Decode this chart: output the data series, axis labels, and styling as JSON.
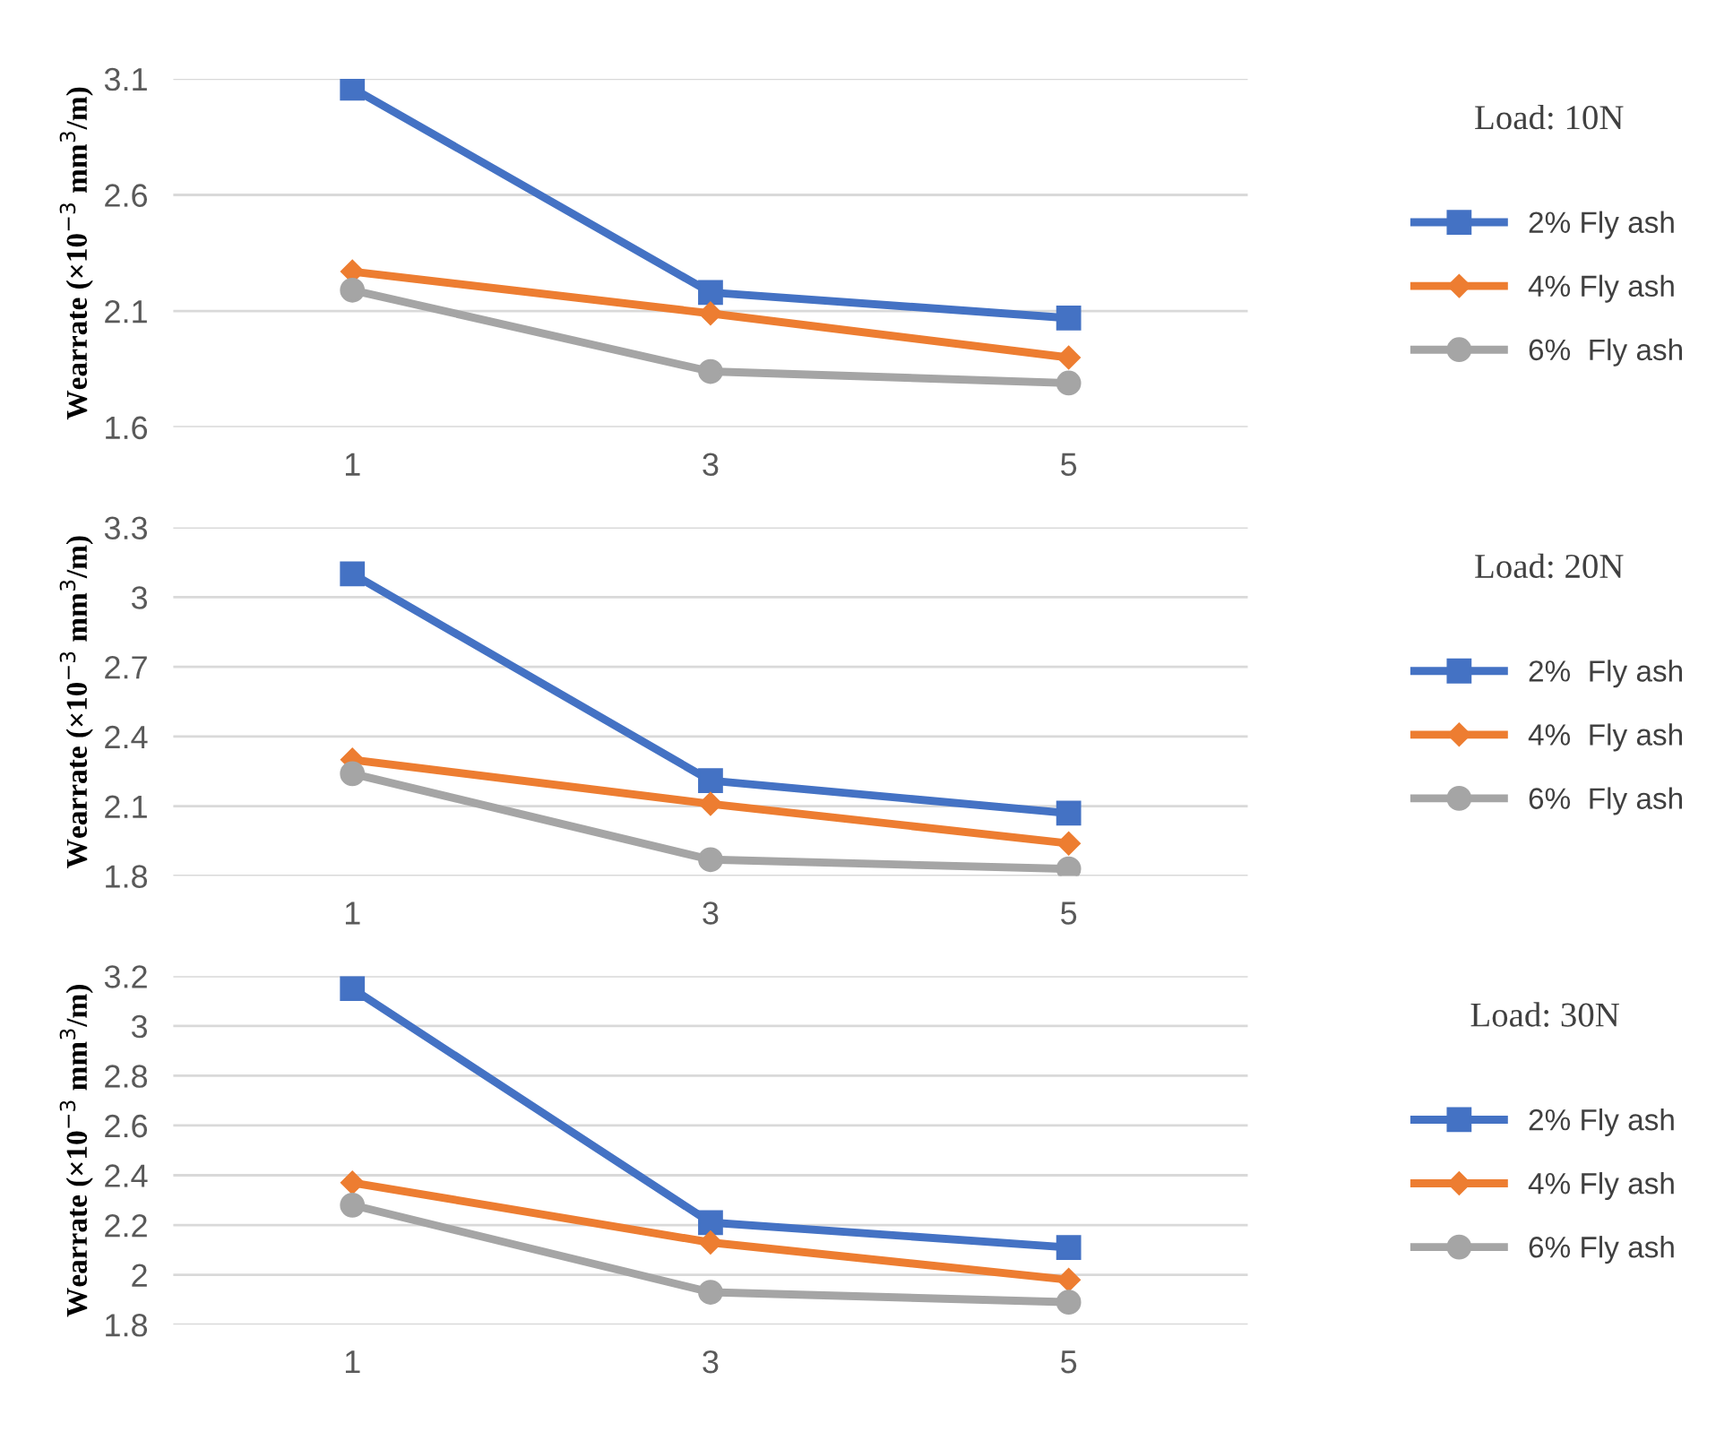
{
  "chart_data": [
    {
      "type": "line",
      "legend_title": "Load: 10N",
      "ylabel": "Wearrate (×10$^{−3}$ mm$^{3}$/m)",
      "categories": [
        "1",
        "3",
        "5"
      ],
      "ylim": [
        1.6,
        3.1
      ],
      "yticks": [
        1.6,
        2.1,
        2.6,
        3.1
      ],
      "grid": "y",
      "legend": "right",
      "series": [
        {
          "name": "2% Fly ash",
          "color": "#4472c4",
          "marker": "square",
          "values": [
            3.06,
            2.18,
            2.07
          ]
        },
        {
          "name": "4% Fly ash",
          "color": "#ed7d31",
          "marker": "diamond",
          "values": [
            2.27,
            2.09,
            1.9
          ]
        },
        {
          "name": "6%  Fly ash",
          "color": "#a5a5a5",
          "marker": "circle",
          "values": [
            2.19,
            1.84,
            1.79
          ]
        }
      ]
    },
    {
      "type": "line",
      "legend_title": "Load: 20N",
      "ylabel": "Wearrate (×10$^{−3}$ mm$^{3}$/m)",
      "categories": [
        "1",
        "3",
        "5"
      ],
      "ylim": [
        1.8,
        3.3
      ],
      "yticks": [
        1.8,
        2.1,
        2.4,
        2.7,
        3,
        3.3
      ],
      "grid": "y",
      "legend": "right",
      "series": [
        {
          "name": "2%  Fly ash",
          "color": "#4472c4",
          "marker": "square",
          "values": [
            3.1,
            2.21,
            2.07
          ]
        },
        {
          "name": "4%  Fly ash",
          "color": "#ed7d31",
          "marker": "diamond",
          "values": [
            2.3,
            2.11,
            1.94
          ]
        },
        {
          "name": "6%  Fly ash",
          "color": "#a5a5a5",
          "marker": "circle",
          "values": [
            2.24,
            1.87,
            1.83
          ]
        }
      ]
    },
    {
      "type": "line",
      "legend_title": "Load: 30N",
      "ylabel": "Wearrate (×10$^{−3}$ mm$^{3}$/m)",
      "categories": [
        "1",
        "3",
        "5"
      ],
      "ylim": [
        1.8,
        3.2
      ],
      "yticks": [
        1.8,
        2,
        2.2,
        2.4,
        2.6,
        2.8,
        3,
        3.2
      ],
      "grid": "y",
      "legend": "right",
      "series": [
        {
          "name": "2% Fly ash",
          "color": "#4472c4",
          "marker": "square",
          "values": [
            3.15,
            2.21,
            2.11
          ]
        },
        {
          "name": "4% Fly ash",
          "color": "#ed7d31",
          "marker": "diamond",
          "values": [
            2.37,
            2.13,
            1.98
          ]
        },
        {
          "name": "6% Fly ash",
          "color": "#a5a5a5",
          "marker": "circle",
          "values": [
            2.28,
            1.93,
            1.89
          ]
        }
      ]
    }
  ]
}
